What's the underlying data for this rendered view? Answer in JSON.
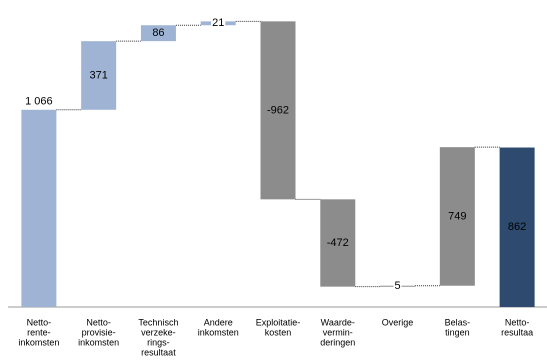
{
  "chart_data": {
    "type": "waterfall",
    "categories": [
      [
        "Netto-",
        "rente-",
        "inkomsten"
      ],
      [
        "Netto-",
        "provisie-",
        "inkomsten"
      ],
      [
        "Technisch",
        "verzeke-",
        "rings-",
        "resultaat"
      ],
      [
        "Andere",
        "inkomsten"
      ],
      [
        "Exploitatie-",
        "kosten"
      ],
      [
        "Waarde-",
        "vermin-",
        "deringen"
      ],
      [
        "Overige"
      ],
      [
        "Belas-",
        "tingen"
      ],
      [
        "Netto-",
        "resultaa"
      ]
    ],
    "values": [
      1066,
      371,
      86,
      21,
      -962,
      -472,
      5,
      749,
      862
    ],
    "value_labels": [
      "1 066",
      "371",
      "86",
      "21",
      "-962",
      "-472",
      "5",
      "749",
      "862"
    ],
    "total": [
      false,
      false,
      false,
      false,
      false,
      false,
      false,
      false,
      true
    ],
    "colors": [
      "#9fb4d4",
      "#9fb4d4",
      "#9fb4d4",
      "#9fb4d4",
      "#8c8c8c",
      "#8c8c8c",
      "#8c8c8c",
      "#8c8c8c",
      "#2e4a6e"
    ],
    "ylim": [
      0,
      1600
    ]
  }
}
